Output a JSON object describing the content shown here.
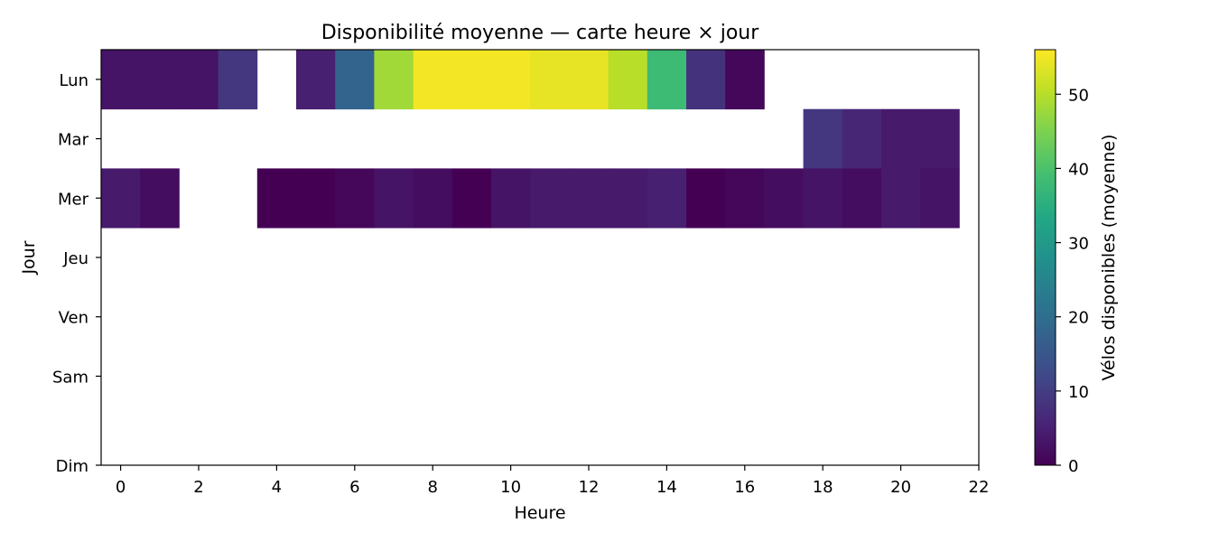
{
  "chart_data": {
    "type": "heatmap",
    "title": "Disponibilité moyenne — carte heure × jour",
    "xlabel": "Heure",
    "ylabel": "Jour",
    "xlim": [
      -0.5,
      22
    ],
    "x_ticks": [
      0,
      2,
      4,
      6,
      8,
      10,
      12,
      14,
      16,
      18,
      20,
      22
    ],
    "rows": [
      "Lun",
      "Mar",
      "Mer",
      "Jeu",
      "Ven",
      "Sam",
      "Dim"
    ],
    "hours": [
      0,
      1,
      2,
      3,
      4,
      5,
      6,
      7,
      8,
      9,
      10,
      11,
      12,
      13,
      14,
      15,
      16,
      17,
      18,
      19,
      20,
      21
    ],
    "values": [
      [
        3,
        3,
        3,
        9,
        null,
        5,
        18,
        48,
        55,
        55,
        55,
        54,
        54,
        50,
        38,
        8,
        1,
        null,
        null,
        null,
        null,
        null
      ],
      [
        null,
        null,
        null,
        null,
        null,
        null,
        null,
        null,
        null,
        null,
        null,
        null,
        null,
        null,
        null,
        null,
        null,
        null,
        9,
        6,
        4,
        4
      ],
      [
        4,
        2,
        null,
        null,
        0,
        0,
        1,
        3,
        2,
        0,
        3,
        4,
        4,
        4,
        5,
        0,
        1,
        2,
        3,
        2,
        4,
        3
      ],
      [
        null,
        null,
        null,
        null,
        null,
        null,
        null,
        null,
        null,
        null,
        null,
        null,
        null,
        null,
        null,
        null,
        null,
        null,
        null,
        null,
        null,
        null
      ],
      [
        null,
        null,
        null,
        null,
        null,
        null,
        null,
        null,
        null,
        null,
        null,
        null,
        null,
        null,
        null,
        null,
        null,
        null,
        null,
        null,
        null,
        null
      ],
      [
        null,
        null,
        null,
        null,
        null,
        null,
        null,
        null,
        null,
        null,
        null,
        null,
        null,
        null,
        null,
        null,
        null,
        null,
        null,
        null,
        null,
        null
      ],
      [
        null,
        null,
        null,
        null,
        null,
        null,
        null,
        null,
        null,
        null,
        null,
        null,
        null,
        null,
        null,
        null,
        null,
        null,
        null,
        null,
        null,
        null
      ]
    ],
    "colorbar": {
      "label": "Vélos disponibles (moyenne)",
      "min": 0,
      "max": 56,
      "ticks": [
        0,
        10,
        20,
        30,
        40,
        50
      ],
      "colormap": "viridis"
    },
    "grid": false,
    "legend": "none"
  }
}
